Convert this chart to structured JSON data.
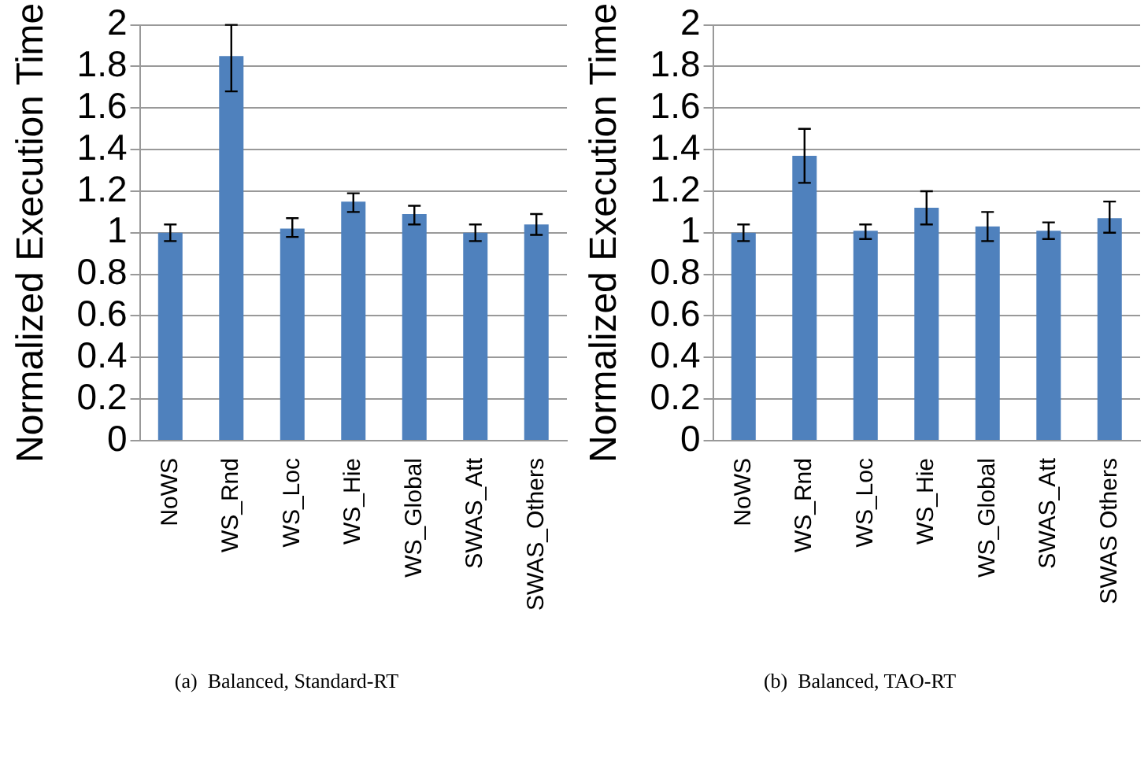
{
  "chart_data": [
    {
      "type": "bar",
      "ylabel": "Normalized Execution Time",
      "categories": [
        "NoWS",
        "WS_Rnd",
        "WS_Loc",
        "WS_Hie",
        "WS_Global",
        "SWAS_Att",
        "SWAS_Others"
      ],
      "values": [
        1.0,
        1.85,
        1.02,
        1.15,
        1.09,
        1.0,
        1.04
      ],
      "color": "#4f81bd",
      "errors": [
        [
          0.96,
          1.04
        ],
        [
          1.68,
          2.0
        ],
        [
          0.98,
          1.07
        ],
        [
          1.1,
          1.19
        ],
        [
          1.04,
          1.13
        ],
        [
          0.96,
          1.04
        ],
        [
          0.99,
          1.09
        ]
      ],
      "ylim": [
        0,
        2
      ],
      "yticks": [
        0,
        0.2,
        0.4,
        0.6,
        0.8,
        1,
        1.2,
        1.4,
        1.6,
        1.8,
        2
      ],
      "grid": "y",
      "annotations": [
        "(a)  Balanced, Standard-RT"
      ]
    },
    {
      "type": "bar",
      "ylabel": "Normalized Execution Time",
      "categories": [
        "NoWS",
        "WS_Rnd",
        "WS_Loc",
        "WS_Hie",
        "WS_Global",
        "SWAS_Att",
        "SWAS Others"
      ],
      "values": [
        1.0,
        1.37,
        1.01,
        1.12,
        1.03,
        1.01,
        1.07
      ],
      "color": "#4f81bd",
      "errors": [
        [
          0.96,
          1.04
        ],
        [
          1.24,
          1.5
        ],
        [
          0.97,
          1.04
        ],
        [
          1.04,
          1.2
        ],
        [
          0.96,
          1.1
        ],
        [
          0.97,
          1.05
        ],
        [
          1.0,
          1.15
        ]
      ],
      "ylim": [
        0,
        2
      ],
      "yticks": [
        0,
        0.2,
        0.4,
        0.6,
        0.8,
        1,
        1.2,
        1.4,
        1.6,
        1.8,
        2
      ],
      "grid": "y",
      "annotations": [
        "(b)  Balanced, TAO-RT"
      ]
    }
  ]
}
